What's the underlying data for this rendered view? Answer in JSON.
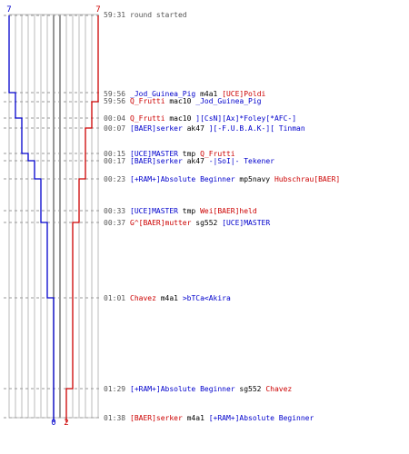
{
  "colors": {
    "blue": "#0000cc",
    "red": "#cc0000",
    "grid": "#bbbbbb",
    "grid_dark": "#555555",
    "time": "#555555",
    "text": "#000000"
  },
  "labels": {
    "top_left": "7",
    "top_right": "7",
    "bottom_blue": "0",
    "bottom_red": "2"
  },
  "chart_data": {
    "type": "line",
    "series": [
      {
        "color": "blue",
        "x": [
          "59:31",
          "59:56",
          "00:04",
          "00:07",
          "00:15",
          "00:17",
          "00:23",
          "00:33",
          "00:37",
          "01:01",
          "01:29",
          "01:38"
        ],
        "y": [
          7,
          6,
          6,
          5,
          5,
          4,
          3,
          2,
          2,
          1,
          0,
          0
        ]
      },
      {
        "color": "red",
        "x": [
          "59:31",
          "59:56",
          "00:04",
          "00:07",
          "00:15",
          "00:17",
          "00:23",
          "00:33",
          "00:37",
          "01:01",
          "01:29",
          "01:38"
        ],
        "y": [
          7,
          7,
          6,
          6,
          5,
          5,
          4,
          4,
          3,
          3,
          3,
          2
        ]
      }
    ],
    "y_range": [
      0,
      7
    ]
  },
  "events": [
    {
      "time": "59:31",
      "parts": [
        {
          "t": "round started",
          "c": "time"
        }
      ]
    },
    {
      "time": "59:56",
      "parts": [
        {
          "t": "_Jod_Guinea_Pig",
          "c": "blue"
        },
        {
          "t": " m4a1 ",
          "c": "text"
        },
        {
          "t": "[UCE]Poldi",
          "c": "red"
        }
      ]
    },
    {
      "time": "59:56",
      "parts": [
        {
          "t": "Q_Frutti",
          "c": "red"
        },
        {
          "t": " mac10 ",
          "c": "text"
        },
        {
          "t": "_Jod_Guinea_Pig",
          "c": "blue"
        }
      ]
    },
    {
      "time": "00:04",
      "parts": [
        {
          "t": "Q_Frutti",
          "c": "red"
        },
        {
          "t": " mac10 ",
          "c": "text"
        },
        {
          "t": "][CsN][Ax]*Foley[*AFC-]",
          "c": "blue"
        }
      ]
    },
    {
      "time": "00:07",
      "parts": [
        {
          "t": "[BAER]serker",
          "c": "blue"
        },
        {
          "t": " ak47 ",
          "c": "text"
        },
        {
          "t": "][-F.U.B.A.K-][ Tinman",
          "c": "blue"
        }
      ]
    },
    {
      "time": "00:15",
      "parts": [
        {
          "t": "[UCE]MASTER",
          "c": "blue"
        },
        {
          "t": " tmp ",
          "c": "text"
        },
        {
          "t": "Q_Frutti",
          "c": "red"
        }
      ]
    },
    {
      "time": "00:17",
      "parts": [
        {
          "t": "[BAER]serker",
          "c": "blue"
        },
        {
          "t": " ak47 ",
          "c": "text"
        },
        {
          "t": "-|SoI|- Tekener",
          "c": "blue"
        }
      ]
    },
    {
      "time": "00:23",
      "parts": [
        {
          "t": "[+RAM+]Absolute Beginner",
          "c": "blue"
        },
        {
          "t": " mp5navy ",
          "c": "text"
        },
        {
          "t": "Hubschrau[BAER]",
          "c": "red"
        }
      ]
    },
    {
      "time": "00:33",
      "parts": [
        {
          "t": "[UCE]MASTER",
          "c": "blue"
        },
        {
          "t": " tmp ",
          "c": "text"
        },
        {
          "t": "Wei[BAER]held",
          "c": "red"
        }
      ]
    },
    {
      "time": "00:37",
      "parts": [
        {
          "t": "G^[BAER]mutter",
          "c": "red"
        },
        {
          "t": " sg552 ",
          "c": "text"
        },
        {
          "t": "[UCE]MASTER",
          "c": "blue"
        }
      ]
    },
    {
      "time": "01:01",
      "parts": [
        {
          "t": "Chavez",
          "c": "red"
        },
        {
          "t": " m4a1 ",
          "c": "text"
        },
        {
          "t": ">bTCa<Akira",
          "c": "blue"
        }
      ]
    },
    {
      "time": "01:29",
      "parts": [
        {
          "t": "[+RAM+]Absolute Beginner",
          "c": "blue"
        },
        {
          "t": " sg552 ",
          "c": "text"
        },
        {
          "t": "Chavez",
          "c": "red"
        }
      ]
    },
    {
      "time": "01:38",
      "parts": [
        {
          "t": "[BAER]serker",
          "c": "red"
        },
        {
          "t": " m4a1 ",
          "c": "text"
        },
        {
          "t": "[+RAM+]Absolute Beginner",
          "c": "blue"
        }
      ]
    }
  ]
}
